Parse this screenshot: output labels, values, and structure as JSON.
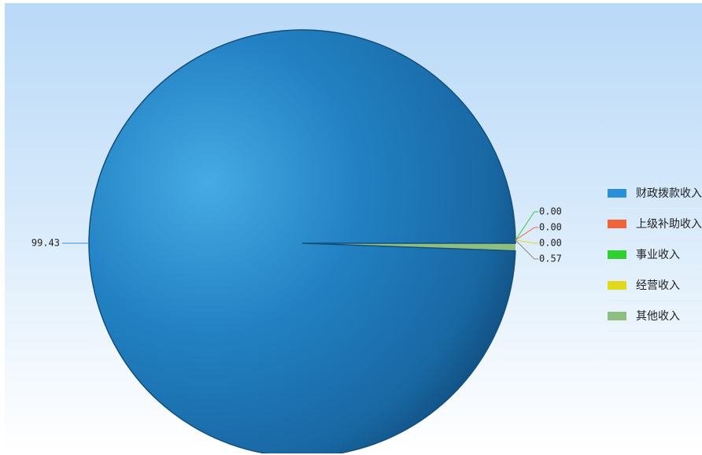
{
  "chart_data": {
    "type": "pie",
    "categories": [
      "财政拨款收入",
      "上级补助收入",
      "事业收入",
      "经营收入",
      "其他收入"
    ],
    "values": [
      99.43,
      0.0,
      0.0,
      0.0,
      0.57
    ],
    "colors": [
      "#2b8fd6",
      "#f0643c",
      "#2fd02f",
      "#e0d81a",
      "#8fbf80"
    ],
    "data_labels": [
      "99.43",
      "0.00",
      "0.00",
      "0.00",
      "0.57"
    ],
    "legend_position": "right",
    "background_gradient": [
      "#b9d9f7",
      "#ffffff"
    ]
  }
}
